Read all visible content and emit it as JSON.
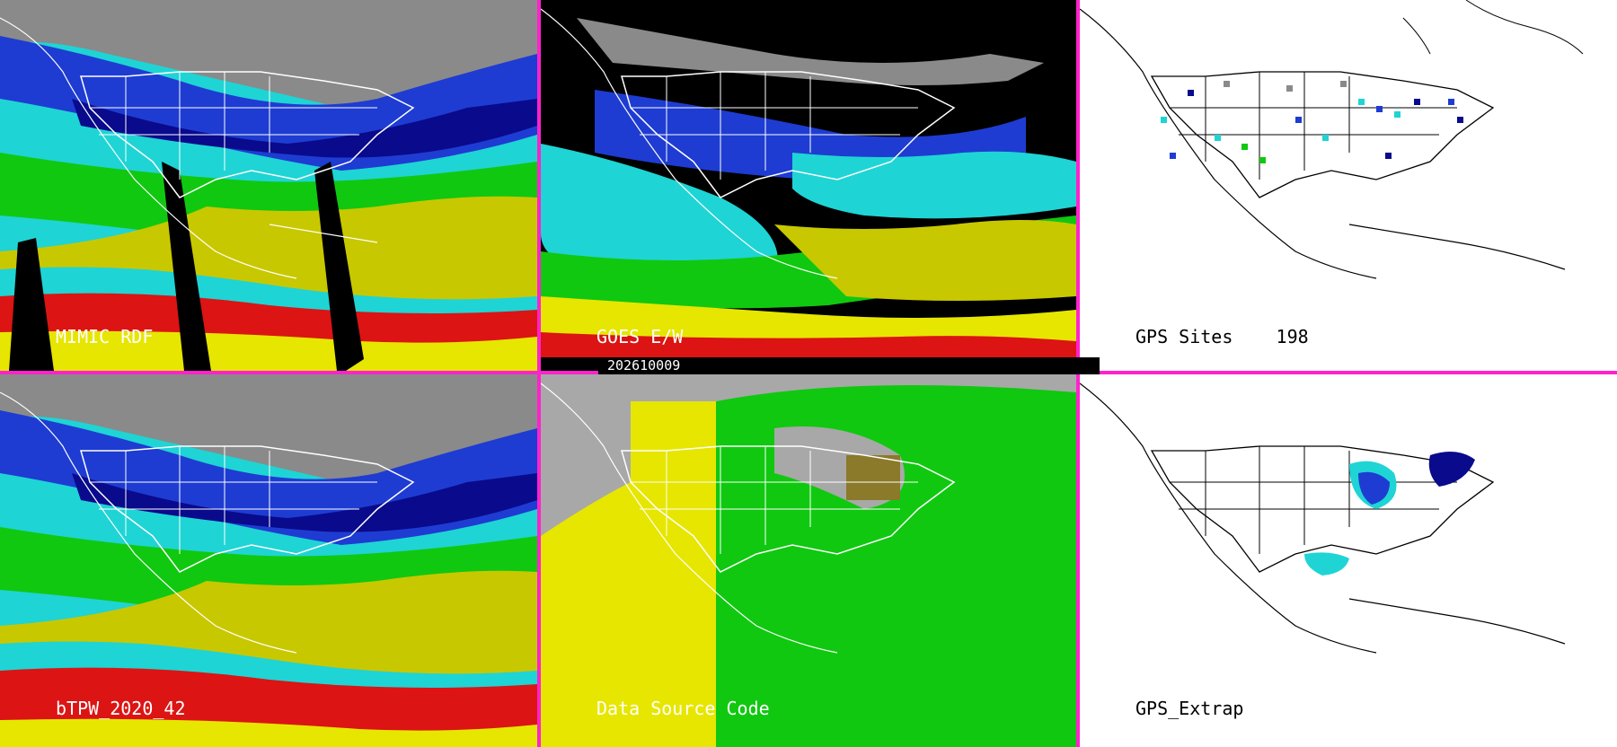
{
  "panels": {
    "mimic": {
      "label": "MIMIC RDF"
    },
    "goes": {
      "label": "GOES E/W"
    },
    "gps_sites": {
      "label": "GPS Sites",
      "count": "198"
    },
    "btpw": {
      "label": "bTPW_2020_42"
    },
    "dsc": {
      "label": "Data Source Code"
    },
    "gps_extrap": {
      "label": "GPS_Extrap"
    }
  },
  "timestamp": "202610009",
  "colors": {
    "divider": "#ff22cc",
    "palette": [
      "#7f7f7f",
      "#0a0a8c",
      "#1e3cd2",
      "#20d0d0",
      "#10c810",
      "#a0dc28",
      "#c8c800",
      "#e6e600",
      "#dc1414",
      "#c81e64",
      "#6a0a8a"
    ]
  }
}
